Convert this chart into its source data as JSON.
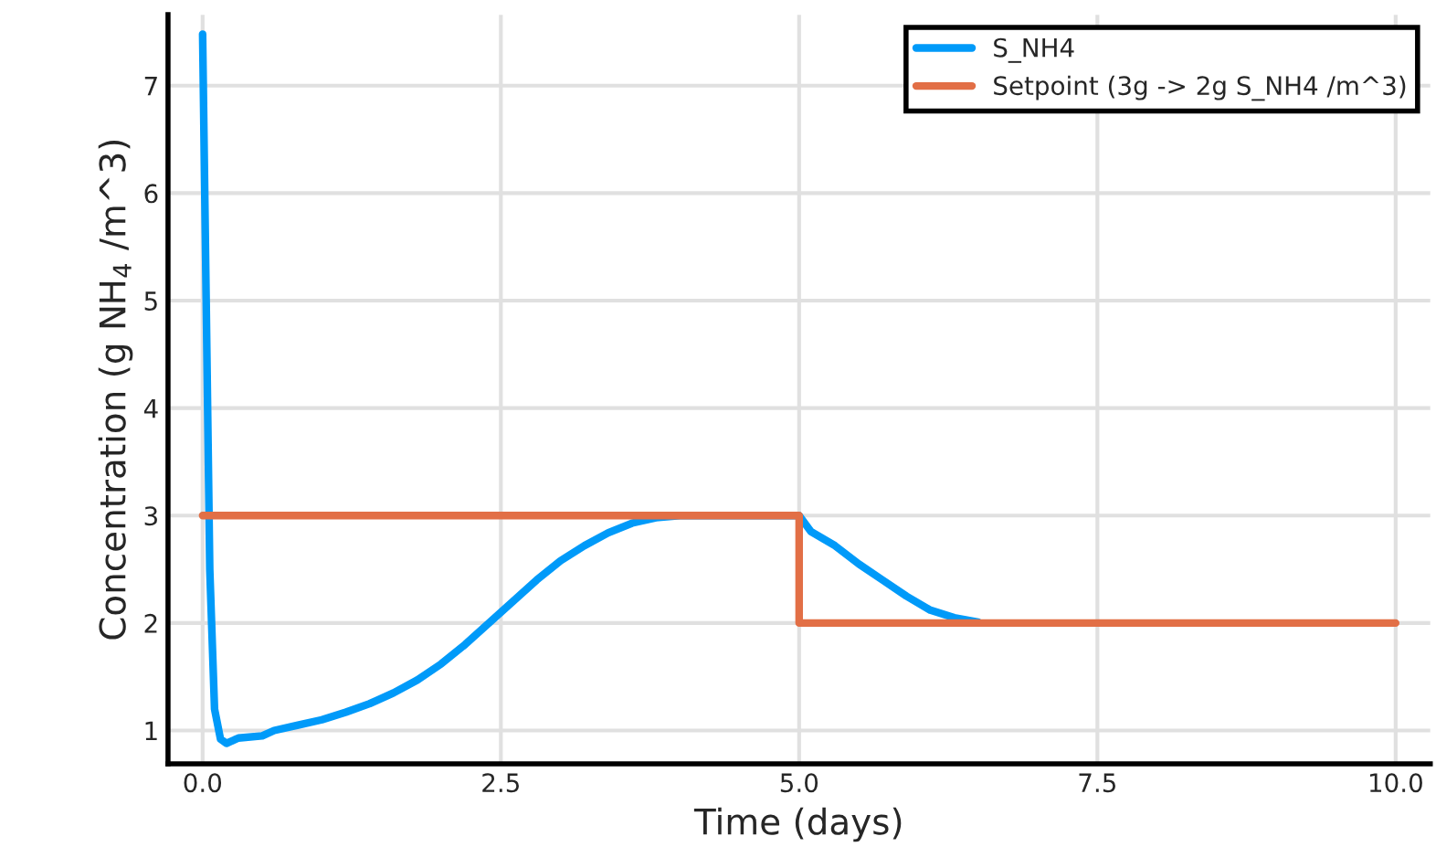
{
  "chart_data": {
    "type": "line",
    "xlabel": "Time (days)",
    "ylabel": "Concentration (g NH$_{4}$ /m^3)",
    "xlim": [
      -0.29,
      10.29
    ],
    "ylim": [
      0.69,
      7.66
    ],
    "xticks": [
      {
        "value": 0,
        "label": "0.0"
      },
      {
        "value": 2.5,
        "label": "2.5"
      },
      {
        "value": 5,
        "label": "5.0"
      },
      {
        "value": 7.5,
        "label": "7.5"
      },
      {
        "value": 10,
        "label": "10.0"
      }
    ],
    "yticks": [
      1,
      2,
      3,
      4,
      5,
      6,
      7
    ],
    "grid": true,
    "legend": "top right",
    "line_style": "solid",
    "series": [
      {
        "name": "S_NH4",
        "color": "#009af9",
        "x": [
          0,
          0.03,
          0.06,
          0.1,
          0.15,
          0.2,
          0.3,
          0.5,
          0.6,
          0.8,
          1.0,
          1.2,
          1.4,
          1.6,
          1.8,
          2.0,
          2.2,
          2.4,
          2.6,
          2.8,
          3.0,
          3.2,
          3.4,
          3.6,
          3.8,
          4.0,
          5.0,
          5.1,
          5.3,
          5.5,
          5.7,
          5.9,
          6.1,
          6.3,
          6.5
        ],
        "values": [
          7.48,
          5.0,
          2.5,
          1.2,
          0.92,
          0.88,
          0.93,
          0.95,
          1.0,
          1.05,
          1.1,
          1.17,
          1.25,
          1.35,
          1.47,
          1.62,
          1.8,
          2.0,
          2.2,
          2.4,
          2.58,
          2.72,
          2.84,
          2.93,
          2.98,
          3.0,
          3.0,
          2.85,
          2.72,
          2.55,
          2.4,
          2.25,
          2.12,
          2.05,
          2.01
        ]
      },
      {
        "name": "Setpoint (3g -> 2g S_NH4 /m^3)",
        "color": "#e26f46",
        "x": [
          0,
          5,
          5,
          10
        ],
        "values": [
          3,
          3,
          2,
          2
        ]
      }
    ]
  }
}
